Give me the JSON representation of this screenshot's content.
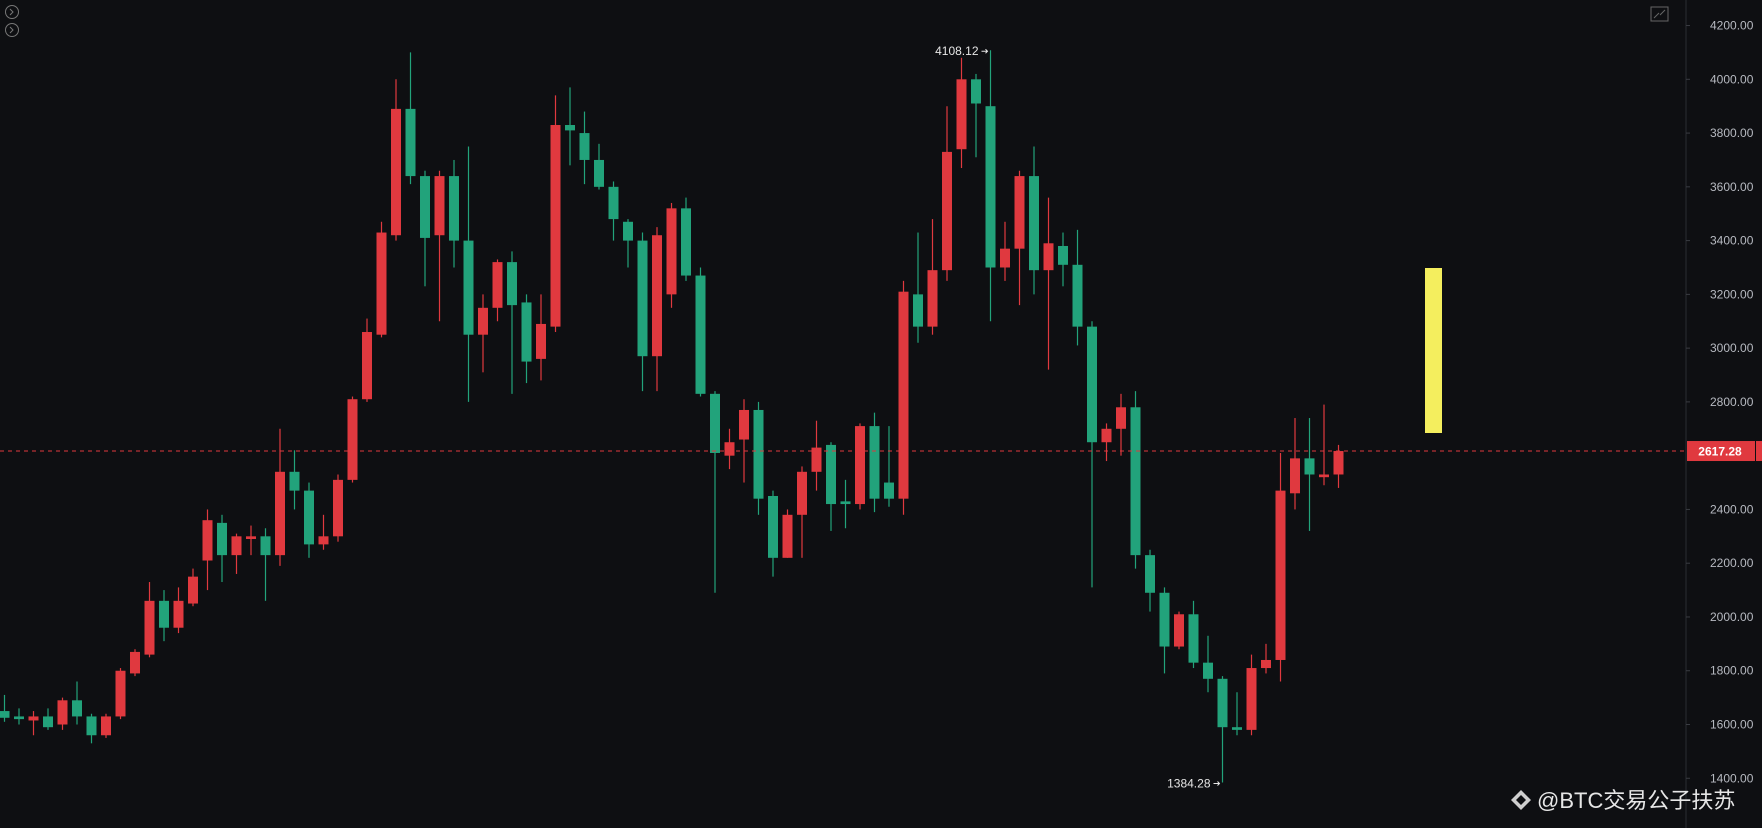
{
  "chart_data": {
    "type": "candlestick",
    "up_color": "#e0393f",
    "down_color": "#22a37b",
    "ylim": [
      1215,
      4295
    ],
    "yticks": [
      {
        "value": 4200,
        "label": "4200.00"
      },
      {
        "value": 4000,
        "label": "4000.00"
      },
      {
        "value": 3800,
        "label": "3800.00"
      },
      {
        "value": 3600,
        "label": "3600.00"
      },
      {
        "value": 3400,
        "label": "3400.00"
      },
      {
        "value": 3200,
        "label": "3200.00"
      },
      {
        "value": 3000,
        "label": "3000.00"
      },
      {
        "value": 2800,
        "label": "2800.00"
      },
      {
        "value": 2400,
        "label": "2400.00"
      },
      {
        "value": 2200,
        "label": "2200.00"
      },
      {
        "value": 2000,
        "label": "2000.00"
      },
      {
        "value": 1800,
        "label": "1800.00"
      },
      {
        "value": 1600,
        "label": "1600.00"
      },
      {
        "value": 1400,
        "label": "1400.00"
      }
    ],
    "open": [
      1650,
      1630,
      1615,
      1630,
      1600,
      1690,
      1630,
      1560,
      1630,
      1790,
      1860,
      2060,
      1960,
      2050,
      2210,
      2350,
      2230,
      2290,
      2300,
      2230,
      2540,
      2470,
      2270,
      2300,
      2510,
      2810,
      3050,
      3420,
      3890,
      3640,
      3420,
      3640,
      3400,
      3050,
      3150,
      3320,
      3170,
      2960,
      3080,
      3830,
      3800,
      3700,
      3600,
      3470,
      3400,
      2970,
      3200,
      3520,
      3270,
      2830,
      2600,
      2660,
      2770,
      2450,
      2220,
      2380,
      2540,
      2640,
      2430,
      2420,
      2710,
      2500,
      2440,
      3200,
      3080,
      3290,
      3740,
      4000,
      3900,
      3300,
      3370,
      3640,
      3290,
      3380,
      3310,
      3080,
      2650,
      2700,
      2780,
      2230,
      2090,
      1890,
      2010,
      1830,
      1770,
      1590,
      1580,
      1810,
      1840,
      2460,
      2590,
      2520,
      2530
    ],
    "high": [
      1710,
      1660,
      1650,
      1660,
      1700,
      1760,
      1640,
      1640,
      1810,
      1880,
      2130,
      2100,
      2110,
      2180,
      2400,
      2380,
      2310,
      2340,
      2330,
      2700,
      2620,
      2500,
      2380,
      2530,
      2820,
      3110,
      3470,
      4000,
      4100,
      3660,
      3660,
      3700,
      3750,
      3200,
      3330,
      3360,
      3200,
      3200,
      3940,
      3970,
      3880,
      3760,
      3620,
      3480,
      3430,
      3450,
      3540,
      3560,
      3300,
      2840,
      2700,
      2810,
      2800,
      2470,
      2400,
      2560,
      2730,
      2650,
      2510,
      2720,
      2760,
      2710,
      3250,
      3430,
      3480,
      3900,
      4080,
      4020,
      4108.12,
      3470,
      3660,
      3750,
      3560,
      3430,
      3440,
      3100,
      2720,
      2830,
      2840,
      2250,
      2110,
      2020,
      2060,
      1930,
      1780,
      1720,
      1860,
      1900,
      2610,
      2740,
      2740,
      2790,
      2640
    ],
    "low": [
      1610,
      1600,
      1560,
      1580,
      1580,
      1600,
      1530,
      1550,
      1620,
      1780,
      1850,
      1910,
      1940,
      2040,
      2100,
      2130,
      2160,
      2230,
      2060,
      2190,
      2400,
      2220,
      2250,
      2280,
      2500,
      2800,
      3040,
      3400,
      3610,
      3230,
      3100,
      3300,
      2800,
      2910,
      3100,
      2830,
      2870,
      2880,
      3060,
      3680,
      3610,
      3590,
      3400,
      3300,
      2840,
      2840,
      3150,
      3250,
      2820,
      2090,
      2550,
      2500,
      2380,
      2150,
      2220,
      2220,
      2470,
      2320,
      2330,
      2400,
      2390,
      2410,
      2380,
      3020,
      3050,
      3250,
      3670,
      3710,
      3100,
      3250,
      3160,
      3200,
      2920,
      3230,
      3010,
      2110,
      2580,
      2600,
      2180,
      2020,
      1790,
      1880,
      1810,
      1720,
      1384.28,
      1560,
      1560,
      1790,
      1760,
      2400,
      2320,
      2490,
      2480
    ],
    "close": [
      1625,
      1620,
      1630,
      1590,
      1690,
      1630,
      1560,
      1630,
      1800,
      1870,
      2060,
      1960,
      2060,
      2150,
      2360,
      2230,
      2300,
      2300,
      2230,
      2540,
      2470,
      2270,
      2300,
      2510,
      2810,
      3060,
      3430,
      3890,
      3640,
      3410,
      3640,
      3400,
      3050,
      3150,
      3320,
      3160,
      2950,
      3090,
      3830,
      3810,
      3700,
      3600,
      3480,
      3400,
      2970,
      3420,
      3520,
      3270,
      2830,
      2610,
      2650,
      2770,
      2440,
      2220,
      2380,
      2540,
      2630,
      2420,
      2420,
      2710,
      2440,
      2440,
      3210,
      3080,
      3290,
      3730,
      4000,
      3910,
      3300,
      3370,
      3640,
      3290,
      3390,
      3310,
      3080,
      2650,
      2700,
      2780,
      2230,
      2090,
      1890,
      2010,
      1830,
      1770,
      1590,
      1580,
      1810,
      1840,
      2470,
      2590,
      2530,
      2530,
      2617.28
    ],
    "watermark": "@BTC交易公子扶苏"
  }
}
